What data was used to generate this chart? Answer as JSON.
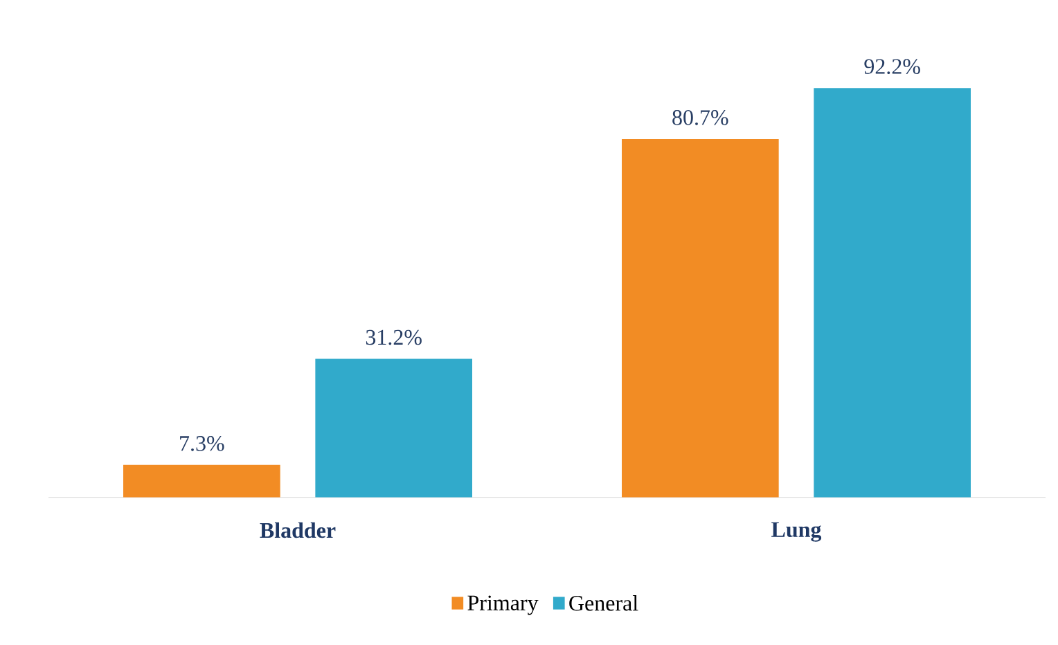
{
  "chart_data": {
    "type": "bar",
    "categories": [
      "Bladder",
      "Lung"
    ],
    "series": [
      {
        "name": "Primary",
        "color": "#f28c24",
        "values": [
          7.3,
          80.7
        ],
        "value_labels": [
          "7.3%",
          "80.7%"
        ]
      },
      {
        "name": "General",
        "color": "#31aacb",
        "values": [
          31.2,
          92.2
        ],
        "value_labels": [
          "31.2%",
          "92.2%"
        ]
      }
    ],
    "legend": "bottom",
    "tick_labels": "x"
  }
}
